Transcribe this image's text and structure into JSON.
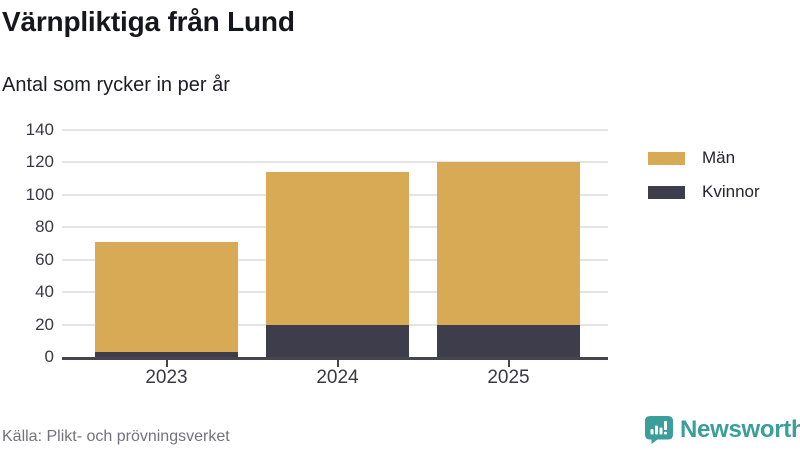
{
  "header": {
    "title": "Värnpliktiga från Lund",
    "subtitle": "Antal som rycker in per år"
  },
  "footer": {
    "source": "Källa: Plikt- och prövningsverket",
    "brand": "Newsworthy"
  },
  "colors": {
    "men": "#d8aa55",
    "women": "#3e3d4c",
    "grid": "#e4e4e7",
    "axis": "#46454f",
    "axis_text": "#3a3943",
    "source_text": "#73737b",
    "brand_teal": "#3a9e9a"
  },
  "chart_data": {
    "type": "bar",
    "stacked": true,
    "title": "Värnpliktiga från Lund",
    "subtitle": "Antal som rycker in per år",
    "categories": [
      "2023",
      "2024",
      "2025"
    ],
    "series": [
      {
        "name": "Män",
        "color": "#d8aa55",
        "values": [
          68,
          94,
          100
        ]
      },
      {
        "name": "Kvinnor",
        "color": "#3e3d4c",
        "values": [
          3,
          20,
          20
        ]
      }
    ],
    "stack_totals": [
      71,
      114,
      120
    ],
    "ylim": [
      0,
      140
    ],
    "yticks": [
      0,
      20,
      40,
      60,
      80,
      100,
      120,
      140
    ],
    "xlabel": "",
    "ylabel": "",
    "grid": true,
    "legend_position": "right"
  }
}
